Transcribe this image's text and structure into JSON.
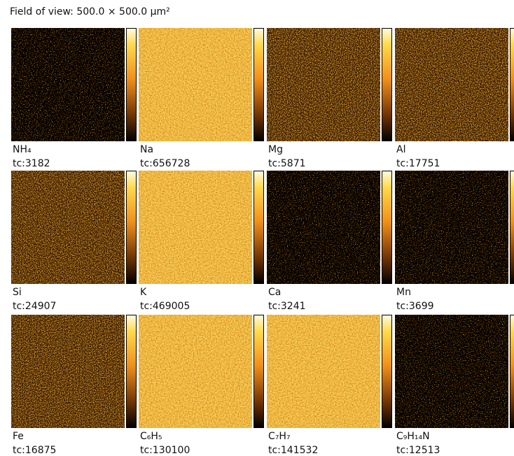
{
  "header": {
    "title": "Field of view: 500.0 × 500.0 µm²"
  },
  "panels": [
    {
      "label": "NH₄",
      "tc": "tc:3182"
    },
    {
      "label": "Na",
      "tc": "tc:656728"
    },
    {
      "label": "Mg",
      "tc": "tc:5871"
    },
    {
      "label": "Al",
      "tc": "tc:17751"
    },
    {
      "label": "Si",
      "tc": "tc:24907"
    },
    {
      "label": "K",
      "tc": "tc:469005"
    },
    {
      "label": "Ca",
      "tc": "tc:3241"
    },
    {
      "label": "Mn",
      "tc": "tc:3699"
    },
    {
      "label": "Fe",
      "tc": "tc:16875"
    },
    {
      "label": "C₆H₅",
      "tc": "tc:130100"
    },
    {
      "label": "C₇H₇",
      "tc": "tc:141532"
    },
    {
      "label": "C₉H₁₄N",
      "tc": "tc:12513"
    }
  ]
}
